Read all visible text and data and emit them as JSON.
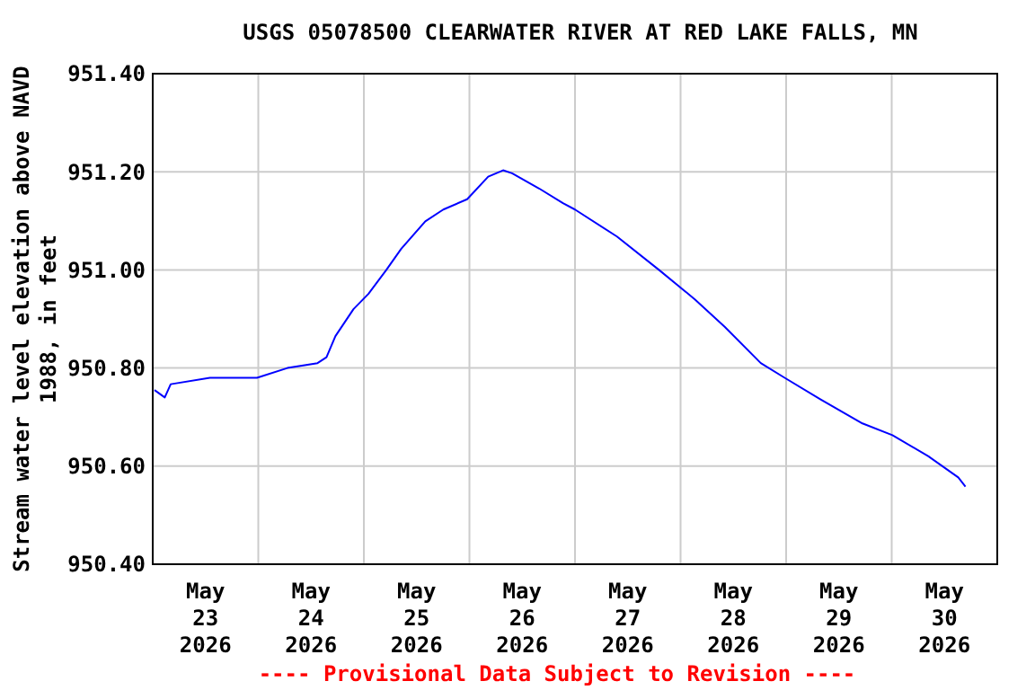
{
  "chart_data": {
    "type": "line",
    "title": "USGS 05078500 CLEARWATER RIVER AT RED LAKE FALLS, MN",
    "ylabel": "Stream water level elevation above NAVD\n1988, in feet",
    "annotations": [
      "---- Provisional Data Subject to Revision ----"
    ],
    "x": [
      "2026-05-23T00:24",
      "2026-05-23T02:44",
      "2026-05-23T04:05",
      "2026-05-23T13:00",
      "2026-05-23T23:42",
      "2026-05-24T06:38",
      "2026-05-24T13:28",
      "2026-05-24T15:30",
      "2026-05-24T17:32",
      "2026-05-24T21:38",
      "2026-05-25T01:02",
      "2026-05-25T05:07",
      "2026-05-25T08:30",
      "2026-05-25T13:58",
      "2026-05-25T18:03",
      "2026-05-25T23:29",
      "2026-05-26T04:16",
      "2026-05-26T07:39",
      "2026-05-26T09:42",
      "2026-05-26T15:50",
      "2026-05-26T21:16",
      "2026-05-27T00:00",
      "2026-05-27T09:32",
      "2026-05-27T19:05",
      "2026-05-28T03:15",
      "2026-05-28T10:02",
      "2026-05-28T18:14",
      "2026-05-28T23:40",
      "2026-05-29T07:51",
      "2026-05-29T17:21",
      "2026-05-30T00:10",
      "2026-05-30T08:21",
      "2026-05-30T15:08",
      "2026-05-30T16:46"
    ],
    "series": [
      {
        "color": "#0000ff",
        "values": [
          950.755,
          950.74,
          950.767,
          950.78,
          950.78,
          950.8,
          950.81,
          950.822,
          950.865,
          950.92,
          950.951,
          951.0,
          951.043,
          951.099,
          951.123,
          951.144,
          951.19,
          951.203,
          951.197,
          951.166,
          951.136,
          951.123,
          951.068,
          951.0,
          950.94,
          950.884,
          950.81,
          950.78,
          950.736,
          950.687,
          950.663,
          950.62,
          950.577,
          950.558
        ]
      }
    ],
    "xlim": [
      "2026-05-23T00:00",
      "2026-05-31T00:00"
    ],
    "xticks": [
      {
        "value": "2026-05-23T12:00",
        "label": "May\n23\n2026"
      },
      {
        "value": "2026-05-24T12:00",
        "label": "May\n24\n2026"
      },
      {
        "value": "2026-05-25T12:00",
        "label": "May\n25\n2026"
      },
      {
        "value": "2026-05-26T12:00",
        "label": "May\n26\n2026"
      },
      {
        "value": "2026-05-27T12:00",
        "label": "May\n27\n2026"
      },
      {
        "value": "2026-05-28T12:00",
        "label": "May\n28\n2026"
      },
      {
        "value": "2026-05-29T12:00",
        "label": "May\n29\n2026"
      },
      {
        "value": "2026-05-30T12:00",
        "label": "May\n30\n2026"
      },
      {
        "value": "2026-05-24T00:00",
        "label": null
      },
      {
        "value": "2026-05-25T00:00",
        "label": null
      },
      {
        "value": "2026-05-26T00:00",
        "label": null
      },
      {
        "value": "2026-05-27T00:00",
        "label": null
      },
      {
        "value": "2026-05-28T00:00",
        "label": null
      },
      {
        "value": "2026-05-29T00:00",
        "label": null
      },
      {
        "value": "2026-05-30T00:00",
        "label": null
      }
    ],
    "ylim": [
      950.4,
      951.4
    ],
    "yticks": [
      {
        "value": 950.4,
        "label": "950.40"
      },
      {
        "value": 950.6,
        "label": "950.60"
      },
      {
        "value": 950.8,
        "label": "950.80"
      },
      {
        "value": 951.0,
        "label": "951.00"
      },
      {
        "value": 951.2,
        "label": "951.20"
      },
      {
        "value": 951.4,
        "label": "951.40"
      }
    ],
    "grid": true,
    "line_style": "solid",
    "marker": "none"
  }
}
